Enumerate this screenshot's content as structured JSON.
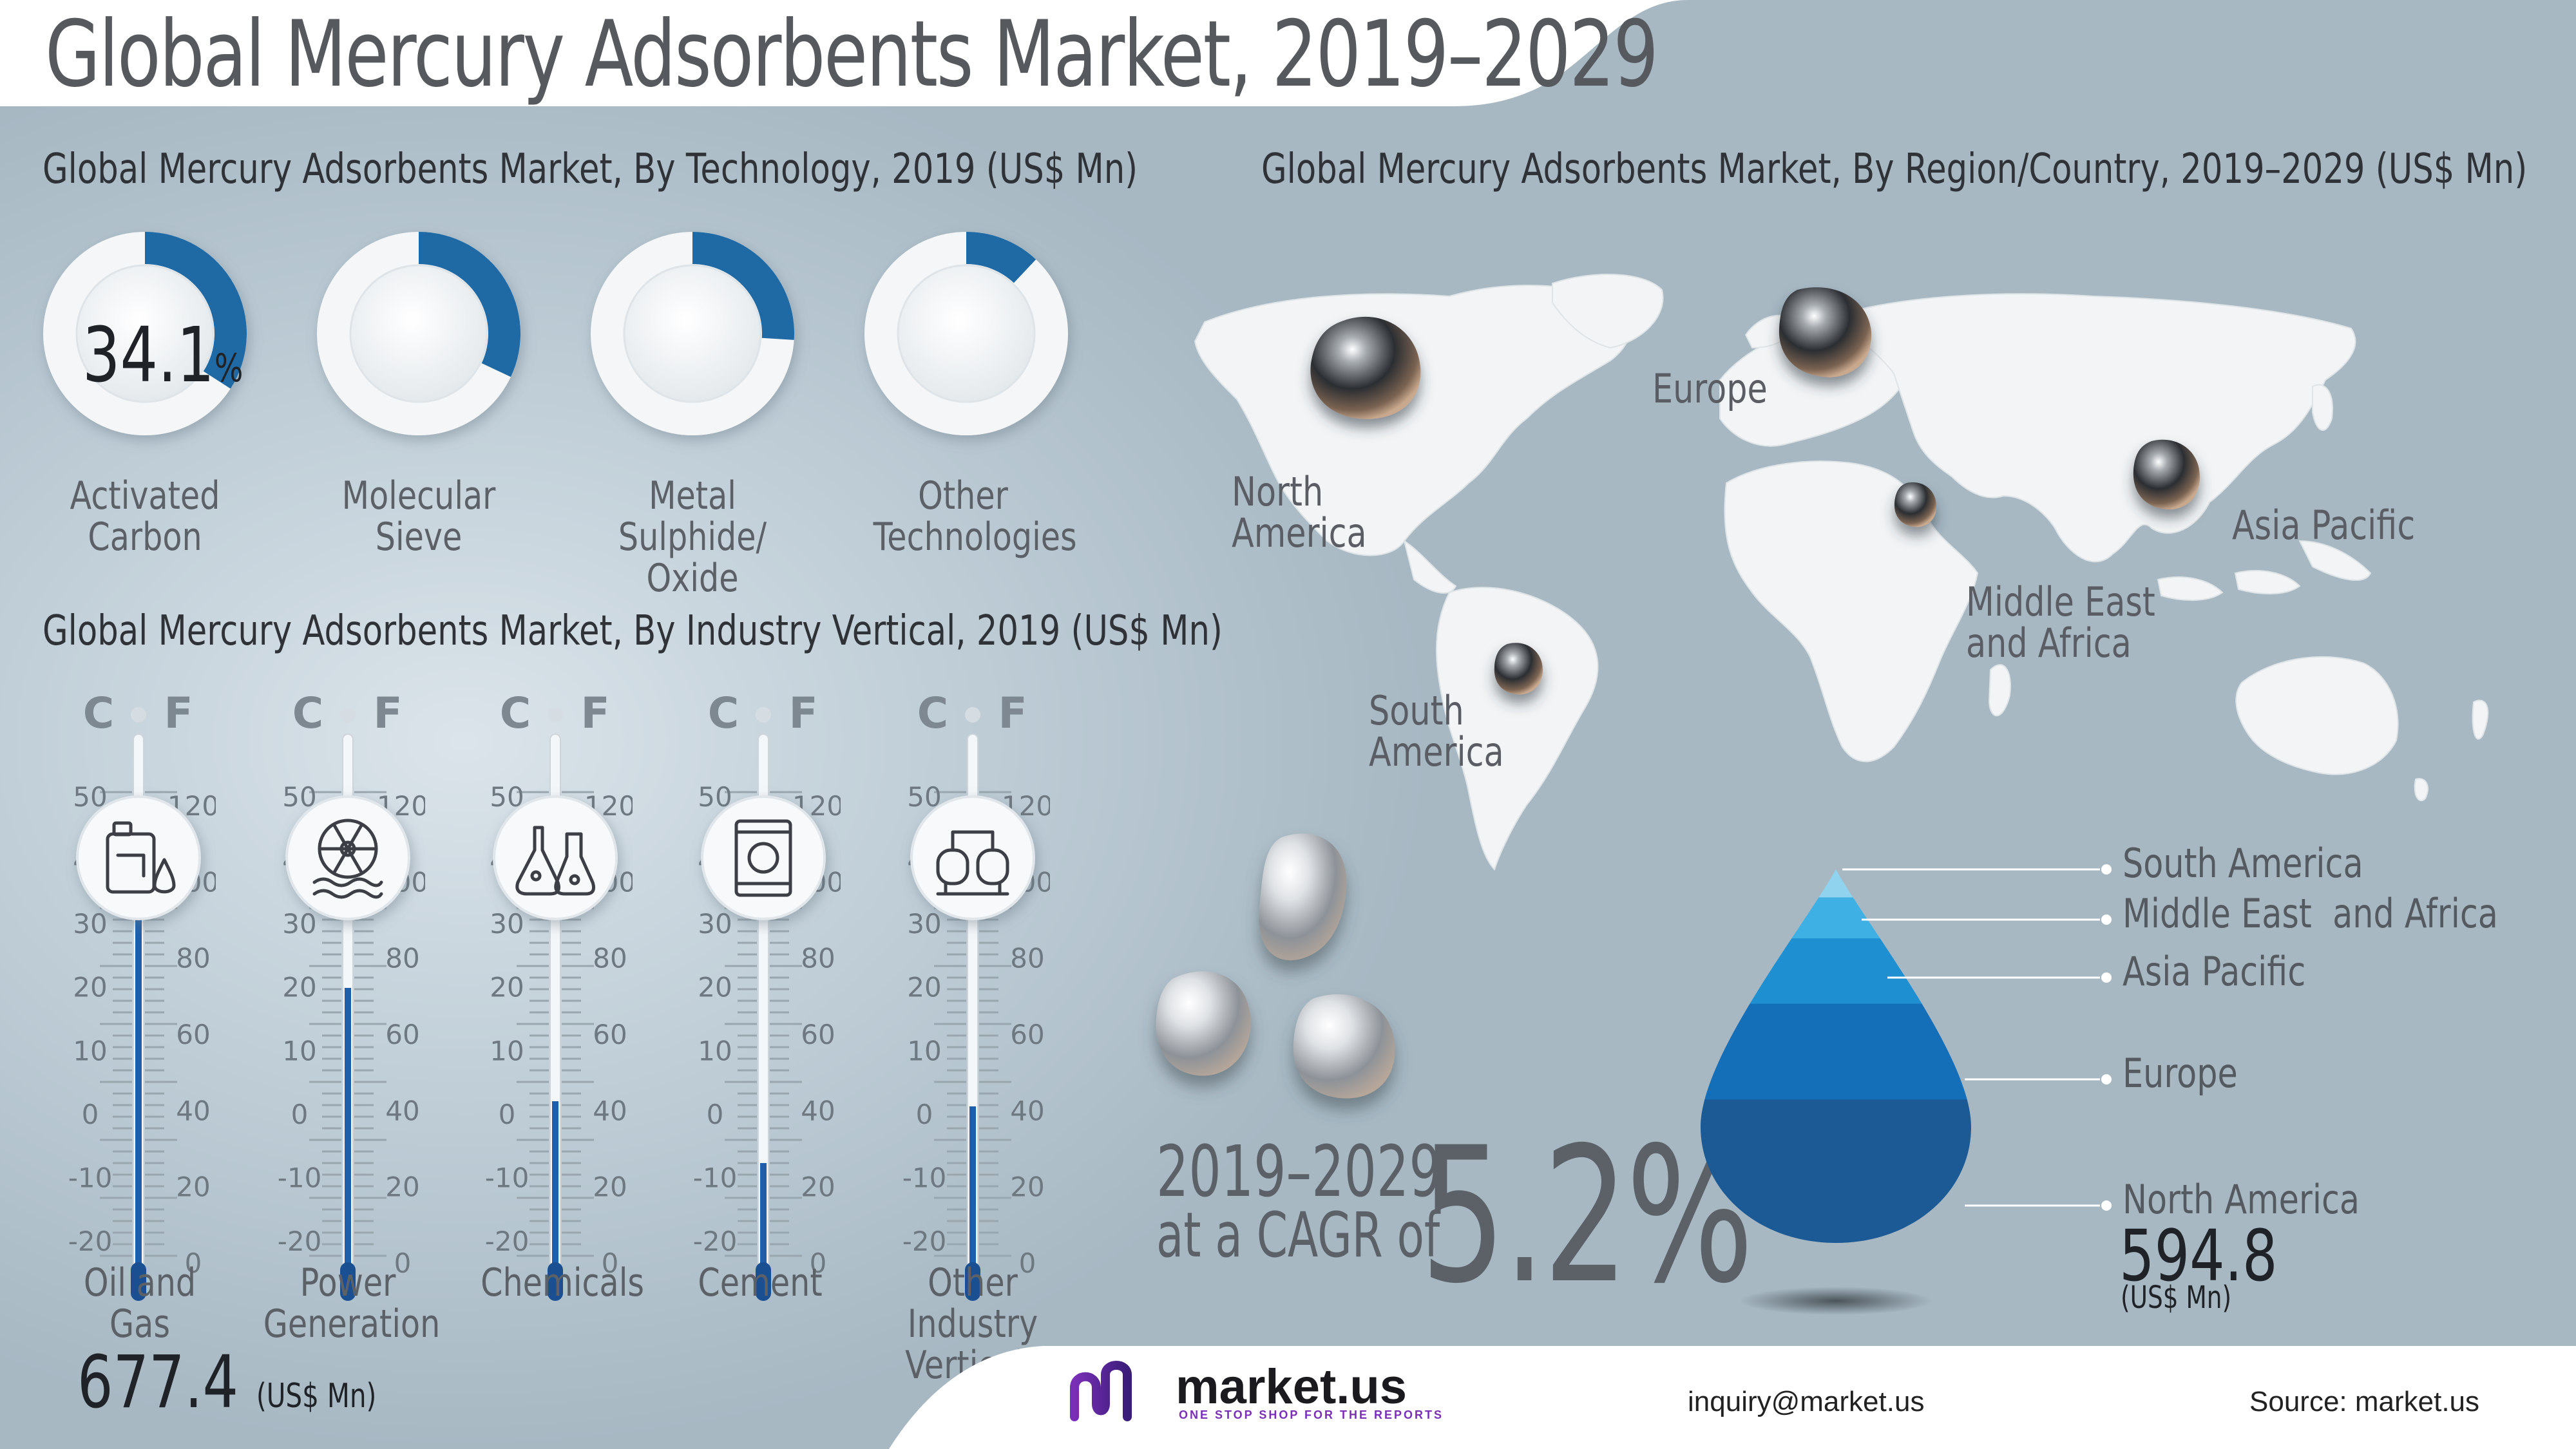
{
  "header": {
    "title": "Global Mercury Adsorbents Market, 2019–2029"
  },
  "technology": {
    "title": "Global Mercury Adsorbents Market, By Technology, 2019 (US$ Mn)",
    "featured_value": "34.1",
    "featured_unit": "%",
    "accent_color": "#1f6aa5"
  },
  "industry": {
    "title": "Global Mercury Adsorbents Market, By Industry Vertical, 2019 (US$ Mn)",
    "scale": {
      "c_label": "C",
      "f_label": "F",
      "c_ticks": [
        "50",
        "40",
        "30",
        "20",
        "10",
        "0",
        "-10",
        "-20"
      ],
      "f_ticks": [
        "120",
        "100",
        "80",
        "60",
        "40",
        "20",
        "0"
      ]
    },
    "featured_value": "677.4",
    "featured_unit": "(US$ Mn)"
  },
  "region": {
    "title": "Global Mercury Adsorbents Market, By Region/Country, 2019–2029 (US$ Mn)",
    "map_labels": {
      "north_america": [
        "North",
        "America"
      ],
      "europe": "Europe",
      "asia_pacific": "Asia Pacific",
      "mea": [
        "Middle East",
        "and Africa"
      ],
      "south_america": [
        "South",
        "America"
      ]
    },
    "featured_value": "594.8",
    "featured_unit": "(US$ Mn)"
  },
  "cagr": {
    "period": "2019–2029",
    "prefix": "at a CAGR of",
    "value": "5.2%"
  },
  "footer": {
    "brand": "market.us",
    "tagline": "ONE STOP SHOP FOR THE REPORTS",
    "email": "inquiry@market.us",
    "source": "Source: market.us"
  },
  "chart_data": [
    {
      "type": "pie",
      "title": "Global Mercury Adsorbents Market, By Technology, 2019 (US$ Mn)",
      "categories": [
        "Activated Carbon",
        "Molecular Sieve",
        "Metal Sulphide/ Oxide",
        "Other Technologies"
      ],
      "values": [
        34.1,
        32.0,
        26.0,
        12.0
      ],
      "unit": "%"
    },
    {
      "type": "bar",
      "title": "Global Mercury Adsorbents Market, By Industry Vertical, 2019 (US$ Mn)",
      "categories": [
        "Oil and Gas",
        "Power Generation",
        "Chemicals",
        "Cement",
        "Other Industry Verticals"
      ],
      "values": [
        677.4,
        520.0,
        300.0,
        180.0,
        290.0
      ],
      "highlight": {
        "category": "Oil and Gas",
        "value": 677.4,
        "unit": "(US$ Mn)"
      }
    },
    {
      "type": "area",
      "title": "Global Mercury Adsorbents Market, By Region/Country, 2019–2029 (US$ Mn)",
      "categories": [
        "South America",
        "Middle East  and Africa",
        "Asia Pacific",
        "Europe",
        "North America"
      ],
      "values": [
        30,
        60,
        140,
        280,
        594.8
      ],
      "highlight": {
        "category": "North America",
        "value": 594.8,
        "unit": "(US$ Mn)"
      }
    }
  ]
}
